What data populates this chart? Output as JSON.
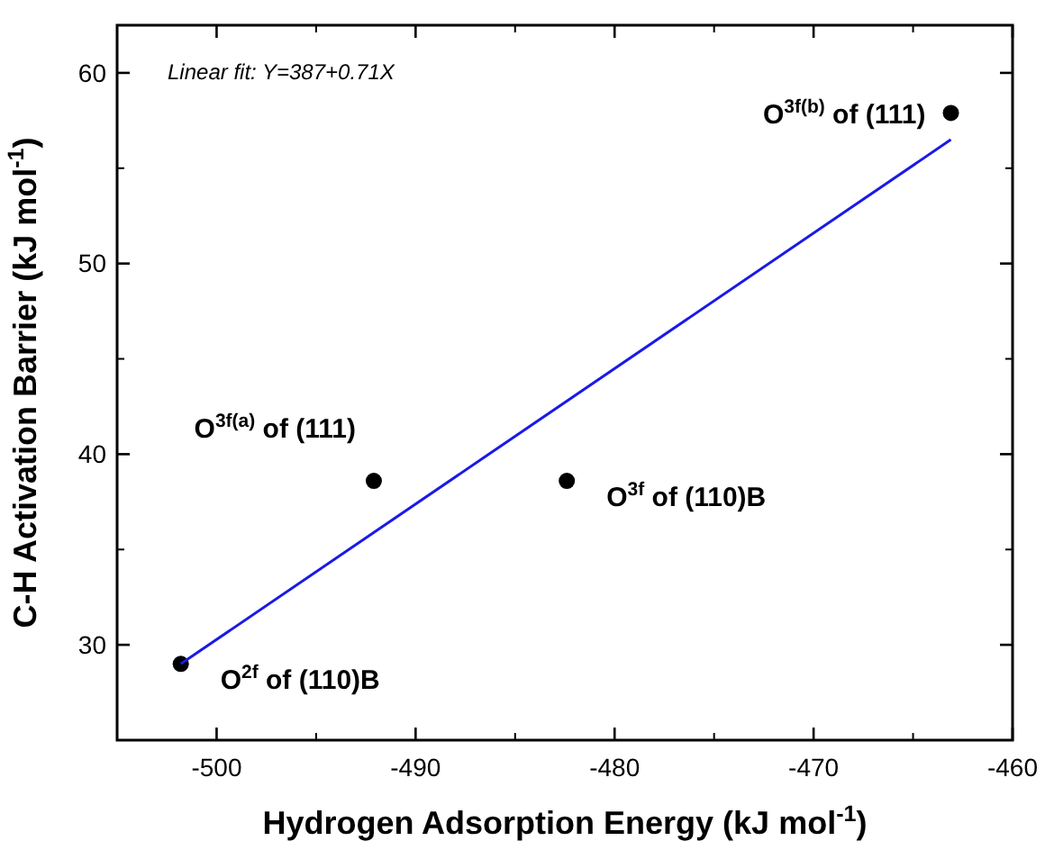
{
  "chart_data": {
    "type": "scatter",
    "xlabel": "Hydrogen Adsorption Energy (kJ mol$^{-1}$)",
    "ylabel": "C-H Activation Barrier (kJ mol$^{-1}$)",
    "xlim": [
      -505,
      -460
    ],
    "xticks": [
      -500,
      -490,
      -480,
      -470,
      -460
    ],
    "ylim": [
      25,
      62.5
    ],
    "yticks": [
      30,
      40,
      50,
      60
    ],
    "grid": false,
    "series": [
      {
        "color": "#000000",
        "marker": "circle",
        "x": [
          -501.8,
          -492.1,
          -482.4,
          -463.1
        ],
        "values": [
          29,
          38.6,
          38.6,
          57.9
        ]
      },
      {
        "type": "line",
        "color": "#1a1ae6",
        "marker": "none",
        "line_style": "solid",
        "x": [
          -501.8,
          -463.1
        ],
        "values": [
          29,
          56.5
        ]
      }
    ],
    "annotations": [
      "Linear fit: Y=387+0.71X",
      {
        "text": "O$^{2f}$ of (110)B",
        "x": -501.8,
        "y": 29
      },
      {
        "text": "O$^{3f(a)}$ of (111)",
        "x": -492.1,
        "y": 38.6
      },
      {
        "text": "O$^{3f}$ of (110)B",
        "x": -482.4,
        "y": 38.6
      },
      {
        "text": "O$^{3f(b)}$ of (111)",
        "x": -463.1,
        "y": 57.9
      }
    ]
  }
}
